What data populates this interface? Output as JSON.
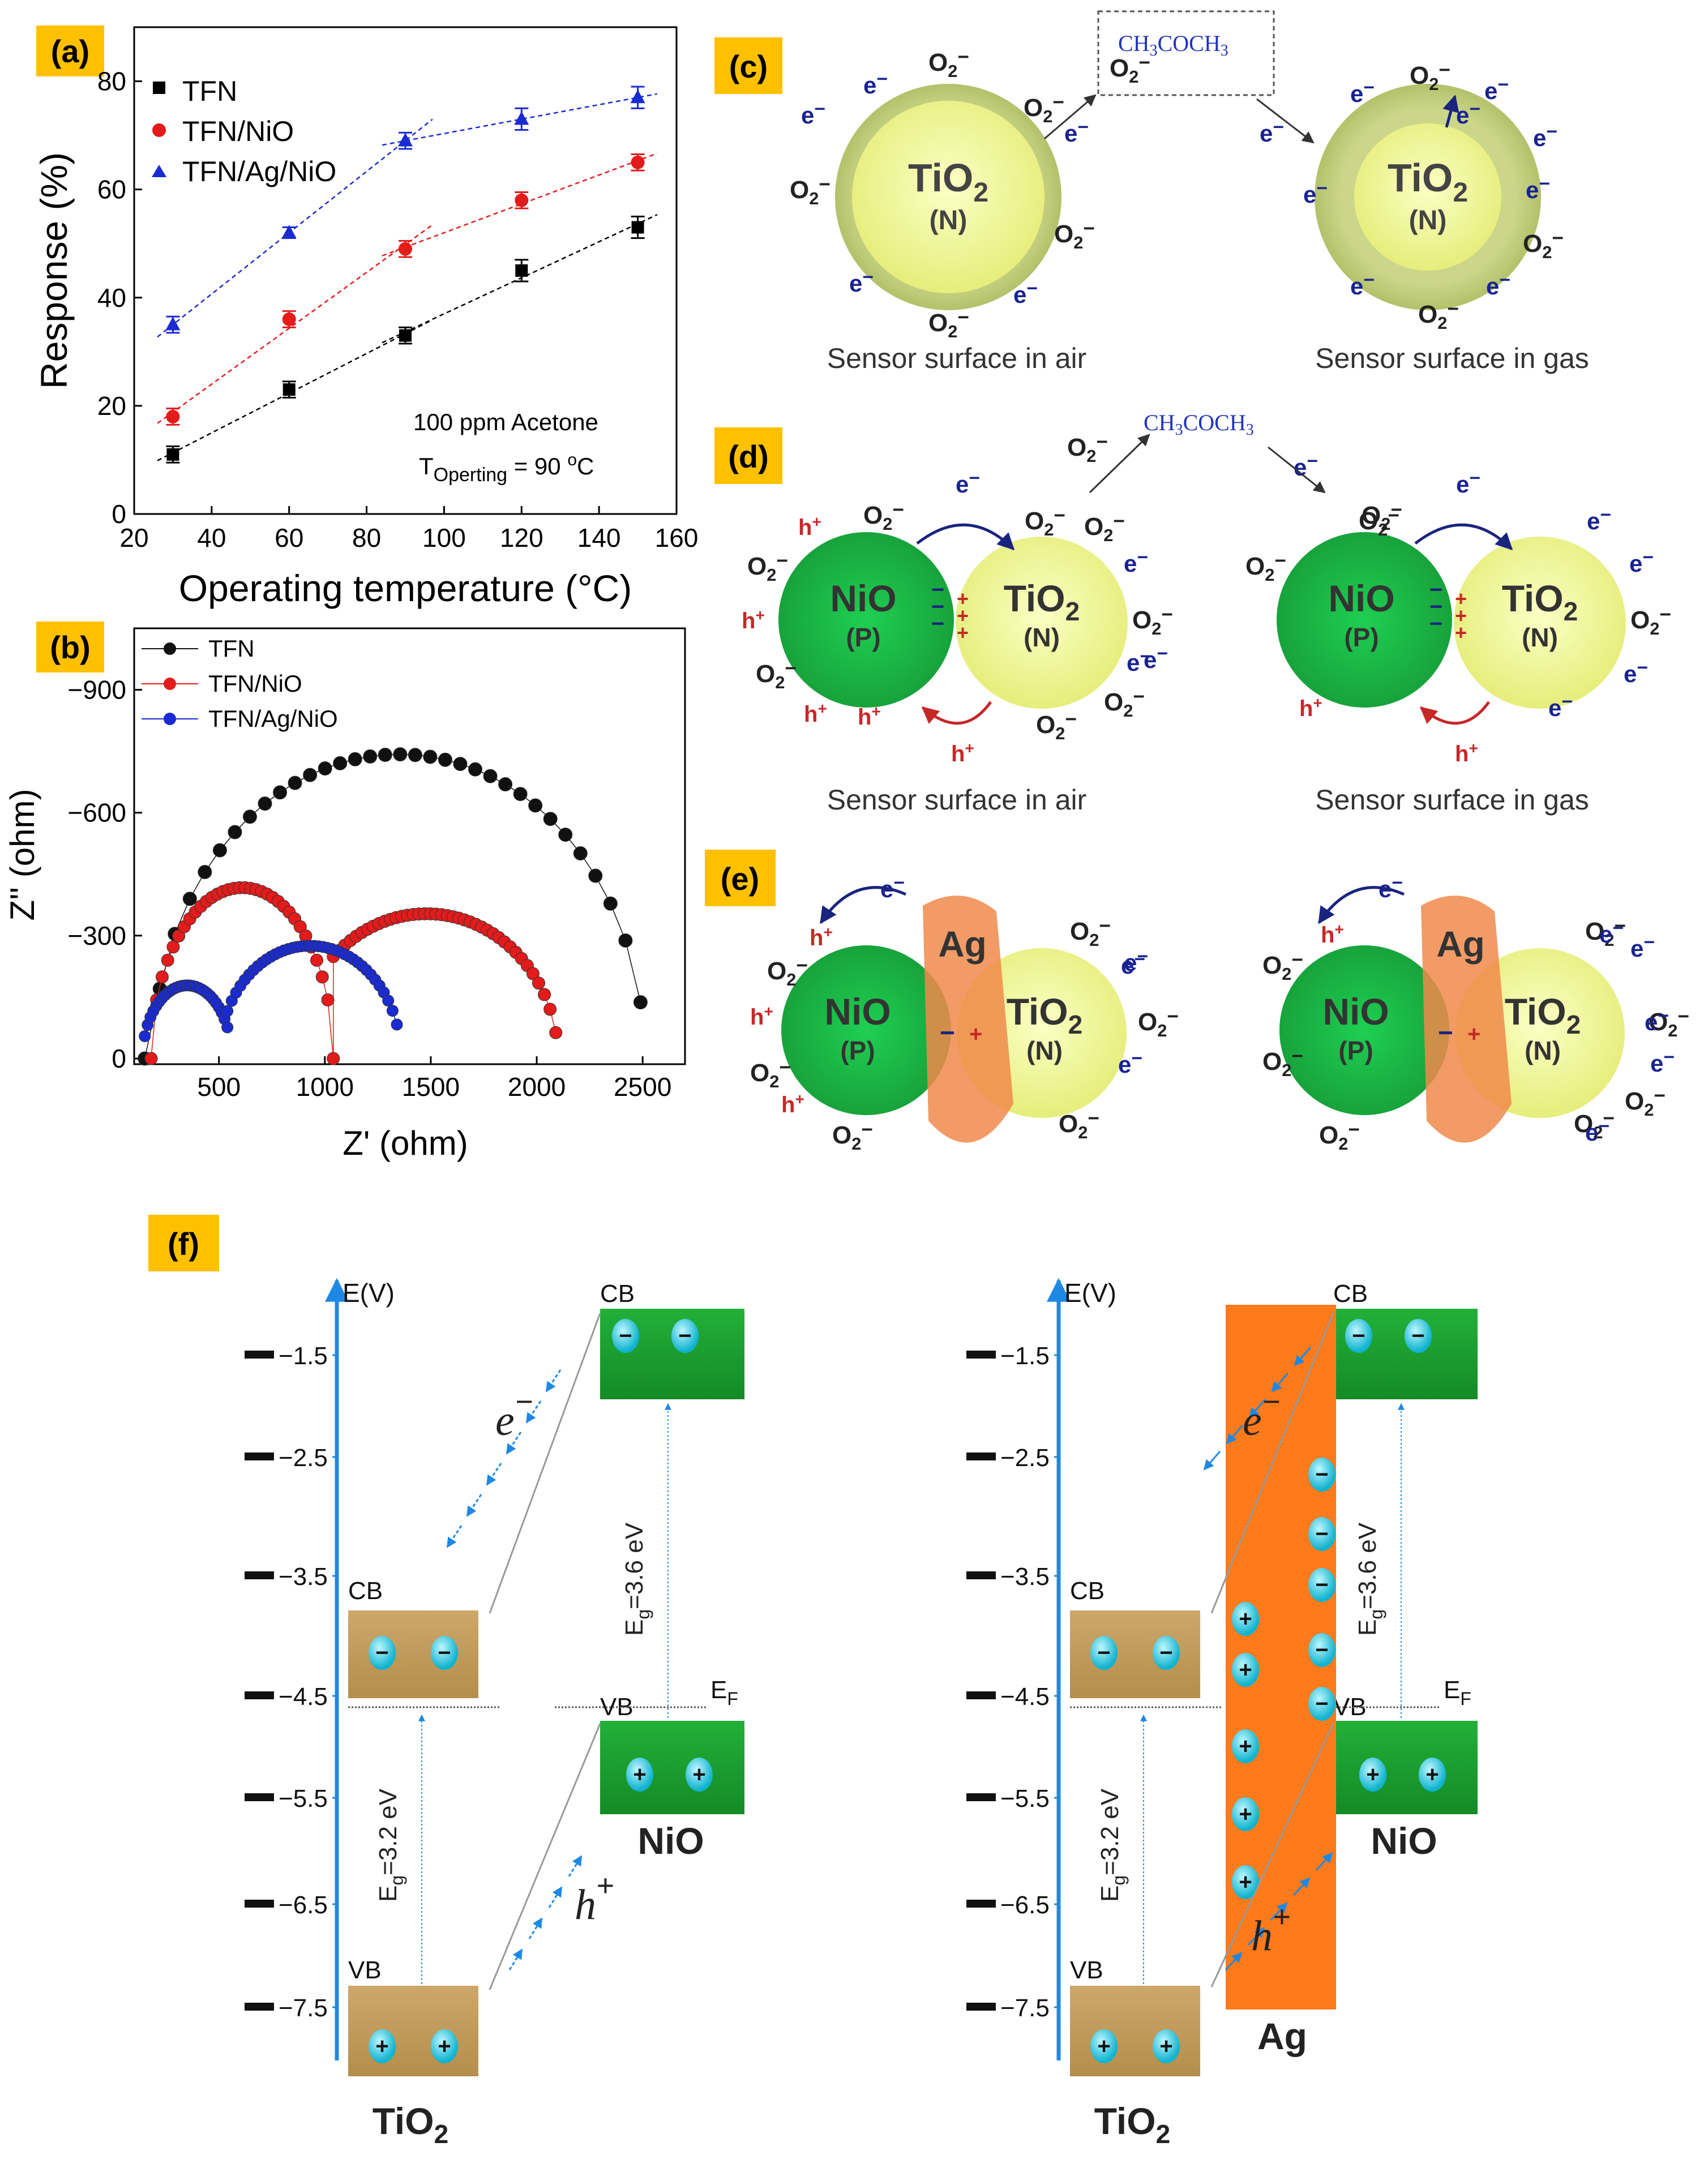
{
  "panel_labels": {
    "a": "(a)",
    "b": "(b)",
    "c": "(c)",
    "d": "(d)",
    "e": "(e)",
    "f": "(f)"
  },
  "colors": {
    "label_bg": "#ffc000",
    "tfn": "#000000",
    "nio_series": "#e31b1b",
    "ag_series": "#1a2bd1",
    "tio2": "#ecf37e",
    "tio2_shell": "#c3cf7a",
    "nio": "#1fb845",
    "ag": "#f08a4b",
    "band_tio2": "#c9a462",
    "band_nio": "#1aa12e",
    "ag_band": "#ff7a1a",
    "arrow_blue": "#1e88e5"
  },
  "chart_data": [
    {
      "type": "line",
      "panel": "a",
      "xlabel": "Operating temperature (°C)",
      "ylabel": "Response (%)",
      "xlim": [
        20,
        160
      ],
      "ylim": [
        0,
        90
      ],
      "xticks": [
        20,
        40,
        60,
        80,
        100,
        120,
        140,
        160
      ],
      "yticks": [
        0,
        20,
        40,
        60,
        80
      ],
      "annotation_line1": "100 ppm Acetone",
      "annotation_line2_main": "T",
      "annotation_line2_sub": "Operting",
      "annotation_line2_value": " = 90 ",
      "annotation_line2_sup": "o",
      "annotation_line2_unit": "C",
      "series": [
        {
          "name": "TFN",
          "marker": "square",
          "color": "#000000",
          "x": [
            30,
            60,
            90,
            120,
            150
          ],
          "y": [
            11,
            23,
            33,
            45,
            53
          ],
          "err": [
            1.5,
            1.5,
            1.5,
            2,
            2
          ]
        },
        {
          "name": "TFN/NiO",
          "marker": "circle",
          "color": "#e31b1b",
          "x": [
            30,
            60,
            90,
            120,
            150
          ],
          "y": [
            18,
            36,
            49,
            58,
            65
          ],
          "err": [
            1.5,
            1.5,
            1.5,
            1.5,
            1.5
          ]
        },
        {
          "name": "TFN/Ag/NiO",
          "marker": "triangle",
          "color": "#1a2bd1",
          "x": [
            30,
            60,
            90,
            120,
            150
          ],
          "y": [
            35,
            52,
            69,
            73,
            77
          ],
          "err": [
            1.5,
            1,
            1.5,
            2,
            2
          ]
        }
      ]
    },
    {
      "type": "scatter",
      "panel": "b",
      "xlabel": "Z' (ohm)",
      "ylabel": "Z'' (ohm)",
      "xlim": [
        100,
        2700
      ],
      "ylim": [
        0,
        -1050
      ],
      "xticks": [
        500,
        1000,
        1500,
        2000,
        2500
      ],
      "yticks": [
        0,
        -300,
        -600,
        -900
      ],
      "ytick_labels": [
        "0",
        "−300",
        "−600",
        "−900"
      ],
      "series": [
        {
          "name": "TFN",
          "color": "#111111",
          "center": 1350,
          "radius": 1160,
          "shift": 580,
          "tmax": 2490
        },
        {
          "name": "TFN/NiO",
          "color": "#e31b1b",
          "arcs": [
            {
              "center": 610,
              "radius": 430,
              "from": 180,
              "to": 1040
            },
            {
              "center": 1480,
              "radius": 620,
              "from": 1040,
              "to": 2090
            }
          ]
        },
        {
          "name": "TFN/Ag/NiO",
          "color": "#1a2bd1",
          "arcs": [
            {
              "center": 350,
              "radius": 210,
              "from": 150,
              "to": 540
            },
            {
              "center": 930,
              "radius": 430,
              "from": 540,
              "to": 1340
            }
          ]
        }
      ]
    },
    {
      "type": "table",
      "panel": "f",
      "ylabel": "E(V)",
      "yticks": [
        "-1.5",
        "-2.5",
        "-3.5",
        "-4.5",
        "-5.5",
        "-6.5",
        "-7.5"
      ]
    }
  ],
  "panel_c": {
    "molecule": "CH3COCH3",
    "mol_main": "CH",
    "mol_s1": "3",
    "mol_mid": "COCH",
    "mol_s2": "3",
    "o2": "O",
    "o2_sub": "2",
    "minus": "−",
    "electron": "e",
    "core": "TiO",
    "core_sub": "2",
    "core_type": "(N)",
    "caption_air": "Sensor surface in air",
    "caption_gas": "Sensor surface in gas"
  },
  "panel_d": {
    "nio": "NiO",
    "nio_type": "(P)",
    "tio2": "TiO",
    "tio2_sub": "2",
    "tio2_type": "(N)",
    "hole": "h",
    "plus": "+",
    "caption_air": "Sensor surface in air",
    "caption_gas": "Sensor surface in gas"
  },
  "panel_e": {
    "ag": "Ag",
    "nio": "NiO",
    "nio_type": "(P)",
    "tio2": "TiO",
    "tio2_sub": "2",
    "tio2_type": "(N)"
  },
  "panel_f": {
    "cb": "CB",
    "vb": "VB",
    "ef": "E",
    "ef_sub": "F",
    "eg_tio2": "E",
    "eg_sub": "g",
    "eg_tio2_val": "=3.2 eV",
    "eg_nio_val": "=3.6 eV",
    "e_label": "e",
    "h_label": "h",
    "tio2": "TiO",
    "tio2_sub": "2",
    "nio": "NiO",
    "ag": "Ag"
  }
}
